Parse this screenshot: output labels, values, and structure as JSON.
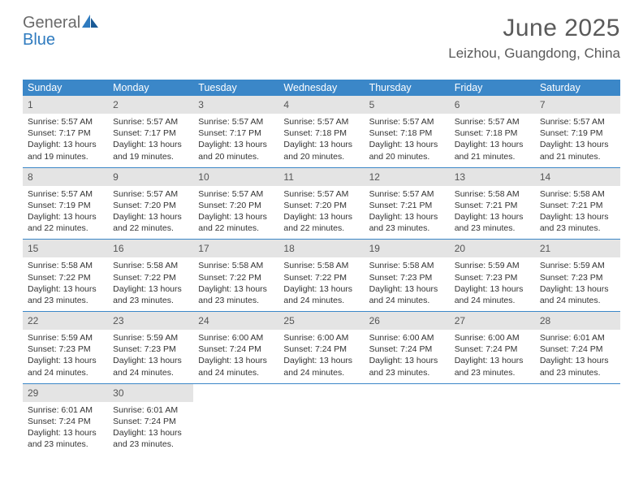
{
  "brand": {
    "part1": "General",
    "part2": "Blue"
  },
  "title": "June 2025",
  "location": "Leizhou, Guangdong, China",
  "colors": {
    "header_bg": "#3b87c8",
    "daynum_bg": "#e4e4e4",
    "rule": "#3b87c8",
    "text": "#333333",
    "title": "#5a5a5a"
  },
  "weekdays": [
    "Sunday",
    "Monday",
    "Tuesday",
    "Wednesday",
    "Thursday",
    "Friday",
    "Saturday"
  ],
  "weeks": [
    [
      {
        "n": "1",
        "sr": "5:57 AM",
        "ss": "7:17 PM",
        "d1": "13 hours",
        "d2": "and 19 minutes."
      },
      {
        "n": "2",
        "sr": "5:57 AM",
        "ss": "7:17 PM",
        "d1": "13 hours",
        "d2": "and 19 minutes."
      },
      {
        "n": "3",
        "sr": "5:57 AM",
        "ss": "7:17 PM",
        "d1": "13 hours",
        "d2": "and 20 minutes."
      },
      {
        "n": "4",
        "sr": "5:57 AM",
        "ss": "7:18 PM",
        "d1": "13 hours",
        "d2": "and 20 minutes."
      },
      {
        "n": "5",
        "sr": "5:57 AM",
        "ss": "7:18 PM",
        "d1": "13 hours",
        "d2": "and 20 minutes."
      },
      {
        "n": "6",
        "sr": "5:57 AM",
        "ss": "7:18 PM",
        "d1": "13 hours",
        "d2": "and 21 minutes."
      },
      {
        "n": "7",
        "sr": "5:57 AM",
        "ss": "7:19 PM",
        "d1": "13 hours",
        "d2": "and 21 minutes."
      }
    ],
    [
      {
        "n": "8",
        "sr": "5:57 AM",
        "ss": "7:19 PM",
        "d1": "13 hours",
        "d2": "and 22 minutes."
      },
      {
        "n": "9",
        "sr": "5:57 AM",
        "ss": "7:20 PM",
        "d1": "13 hours",
        "d2": "and 22 minutes."
      },
      {
        "n": "10",
        "sr": "5:57 AM",
        "ss": "7:20 PM",
        "d1": "13 hours",
        "d2": "and 22 minutes."
      },
      {
        "n": "11",
        "sr": "5:57 AM",
        "ss": "7:20 PM",
        "d1": "13 hours",
        "d2": "and 22 minutes."
      },
      {
        "n": "12",
        "sr": "5:57 AM",
        "ss": "7:21 PM",
        "d1": "13 hours",
        "d2": "and 23 minutes."
      },
      {
        "n": "13",
        "sr": "5:58 AM",
        "ss": "7:21 PM",
        "d1": "13 hours",
        "d2": "and 23 minutes."
      },
      {
        "n": "14",
        "sr": "5:58 AM",
        "ss": "7:21 PM",
        "d1": "13 hours",
        "d2": "and 23 minutes."
      }
    ],
    [
      {
        "n": "15",
        "sr": "5:58 AM",
        "ss": "7:22 PM",
        "d1": "13 hours",
        "d2": "and 23 minutes."
      },
      {
        "n": "16",
        "sr": "5:58 AM",
        "ss": "7:22 PM",
        "d1": "13 hours",
        "d2": "and 23 minutes."
      },
      {
        "n": "17",
        "sr": "5:58 AM",
        "ss": "7:22 PM",
        "d1": "13 hours",
        "d2": "and 23 minutes."
      },
      {
        "n": "18",
        "sr": "5:58 AM",
        "ss": "7:22 PM",
        "d1": "13 hours",
        "d2": "and 24 minutes."
      },
      {
        "n": "19",
        "sr": "5:58 AM",
        "ss": "7:23 PM",
        "d1": "13 hours",
        "d2": "and 24 minutes."
      },
      {
        "n": "20",
        "sr": "5:59 AM",
        "ss": "7:23 PM",
        "d1": "13 hours",
        "d2": "and 24 minutes."
      },
      {
        "n": "21",
        "sr": "5:59 AM",
        "ss": "7:23 PM",
        "d1": "13 hours",
        "d2": "and 24 minutes."
      }
    ],
    [
      {
        "n": "22",
        "sr": "5:59 AM",
        "ss": "7:23 PM",
        "d1": "13 hours",
        "d2": "and 24 minutes."
      },
      {
        "n": "23",
        "sr": "5:59 AM",
        "ss": "7:23 PM",
        "d1": "13 hours",
        "d2": "and 24 minutes."
      },
      {
        "n": "24",
        "sr": "6:00 AM",
        "ss": "7:24 PM",
        "d1": "13 hours",
        "d2": "and 24 minutes."
      },
      {
        "n": "25",
        "sr": "6:00 AM",
        "ss": "7:24 PM",
        "d1": "13 hours",
        "d2": "and 24 minutes."
      },
      {
        "n": "26",
        "sr": "6:00 AM",
        "ss": "7:24 PM",
        "d1": "13 hours",
        "d2": "and 23 minutes."
      },
      {
        "n": "27",
        "sr": "6:00 AM",
        "ss": "7:24 PM",
        "d1": "13 hours",
        "d2": "and 23 minutes."
      },
      {
        "n": "28",
        "sr": "6:01 AM",
        "ss": "7:24 PM",
        "d1": "13 hours",
        "d2": "and 23 minutes."
      }
    ],
    [
      {
        "n": "29",
        "sr": "6:01 AM",
        "ss": "7:24 PM",
        "d1": "13 hours",
        "d2": "and 23 minutes."
      },
      {
        "n": "30",
        "sr": "6:01 AM",
        "ss": "7:24 PM",
        "d1": "13 hours",
        "d2": "and 23 minutes."
      },
      null,
      null,
      null,
      null,
      null
    ]
  ],
  "labels": {
    "sunrise": "Sunrise: ",
    "sunset": "Sunset: ",
    "daylight": "Daylight: "
  }
}
